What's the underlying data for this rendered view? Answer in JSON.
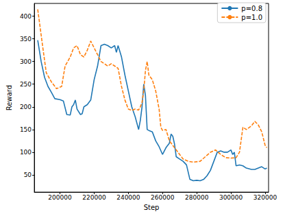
{
  "chart_data": {
    "type": "line",
    "x_label": "Step",
    "y_label": "Reward",
    "xlim": [
      185000,
      322000
    ],
    "xticks": [
      200000,
      220000,
      240000,
      260000,
      280000,
      300000,
      320000
    ],
    "ylim": [
      12,
      428
    ],
    "yticks": [
      50,
      100,
      150,
      200,
      250,
      300,
      350,
      400
    ],
    "grid": false,
    "legend": "upper right",
    "series": [
      {
        "name": "p=0.8",
        "color": "#1f77b4",
        "line_style": "solid",
        "x": [
          187000,
          189000,
          191000,
          193000,
          195000,
          197000,
          200000,
          202000,
          204000,
          206000,
          207000,
          208000,
          209000,
          210000,
          212000,
          213000,
          214000,
          216000,
          218000,
          220000,
          222000,
          224000,
          226000,
          228000,
          230000,
          232000,
          233000,
          234000,
          236000,
          238000,
          240000,
          242000,
          244000,
          246000,
          247000,
          248000,
          249000,
          250000,
          251000,
          252000,
          254000,
          256000,
          258000,
          260000,
          262000,
          264000,
          265000,
          266000,
          267000,
          268000,
          270000,
          272000,
          274000,
          276000,
          278000,
          280000,
          282000,
          284000,
          286000,
          288000,
          290000,
          292000,
          294000,
          296000,
          298000,
          300000,
          301000,
          302000,
          303000,
          305000,
          307000,
          309000,
          312000,
          314000,
          316000,
          318000,
          320000,
          321000
        ],
        "values": [
          347,
          300,
          265,
          245,
          232,
          218,
          216,
          213,
          183,
          182,
          200,
          205,
          215,
          195,
          183,
          185,
          200,
          205,
          215,
          260,
          290,
          335,
          338,
          335,
          330,
          335,
          320,
          335,
          310,
          270,
          235,
          200,
          178,
          150,
          170,
          200,
          250,
          225,
          150,
          148,
          145,
          125,
          112,
          95,
          110,
          120,
          140,
          135,
          118,
          90,
          85,
          80,
          72,
          40,
          37,
          38,
          37,
          40,
          48,
          60,
          80,
          100,
          103,
          100,
          100,
          105,
          95,
          100,
          70,
          72,
          70,
          65,
          62,
          62,
          65,
          68,
          63,
          65
        ]
      },
      {
        "name": "p=1.0",
        "color": "#ff7f0e",
        "line_style": "dashed",
        "x": [
          187000,
          190000,
          192000,
          195000,
          198000,
          201000,
          203000,
          206000,
          208000,
          210000,
          212000,
          214000,
          216000,
          218000,
          220000,
          222000,
          224000,
          226000,
          228000,
          230000,
          232000,
          234000,
          236000,
          238000,
          240000,
          242000,
          244000,
          246000,
          247000,
          248000,
          249000,
          250000,
          251000,
          252000,
          254000,
          256000,
          258000,
          259000,
          260000,
          262000,
          264000,
          266000,
          268000,
          270000,
          272000,
          275000,
          278000,
          282000,
          285000,
          288000,
          291000,
          294000,
          297000,
          300000,
          303000,
          305000,
          307000,
          309000,
          312000,
          314000,
          316000,
          318000,
          320000,
          321000
        ],
        "values": [
          415,
          330,
          275,
          255,
          240,
          245,
          290,
          310,
          330,
          335,
          315,
          310,
          325,
          345,
          330,
          315,
          300,
          295,
          290,
          295,
          290,
          285,
          245,
          215,
          195,
          192,
          195,
          193,
          200,
          210,
          235,
          280,
          300,
          270,
          260,
          235,
          195,
          155,
          148,
          150,
          125,
          115,
          105,
          95,
          85,
          80,
          78,
          80,
          90,
          100,
          105,
          95,
          88,
          87,
          88,
          100,
          155,
          150,
          158,
          168,
          160,
          145,
          115,
          110
        ]
      }
    ]
  }
}
